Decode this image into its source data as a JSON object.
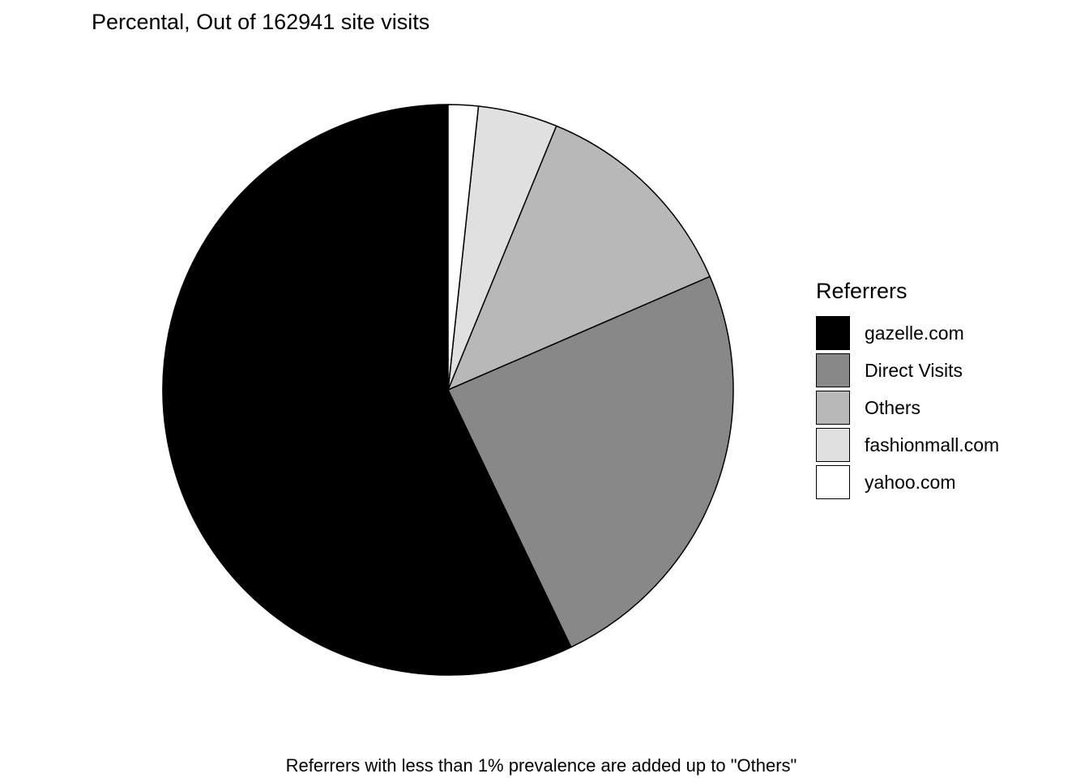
{
  "chart_data": {
    "type": "pie",
    "title": "Percental, Out of 162941 site visits",
    "legend_title": "Referrers",
    "legend_position": "right",
    "caption": "Referrers with less than 1% prevalence are added up to \"Others\"",
    "start_angle": "12 o'clock",
    "direction": "counterclockwise",
    "slices": [
      {
        "label": "gazelle.com",
        "value": 57.1,
        "color": "#000000"
      },
      {
        "label": "Direct Visits",
        "value": 24.4,
        "color": "#888888"
      },
      {
        "label": "Others",
        "value": 12.3,
        "color": "#b8b8b8"
      },
      {
        "label": "fashionmall.com",
        "value": 4.5,
        "color": "#e0e0e0"
      },
      {
        "label": "yahoo.com",
        "value": 1.7,
        "color": "#ffffff"
      }
    ]
  }
}
